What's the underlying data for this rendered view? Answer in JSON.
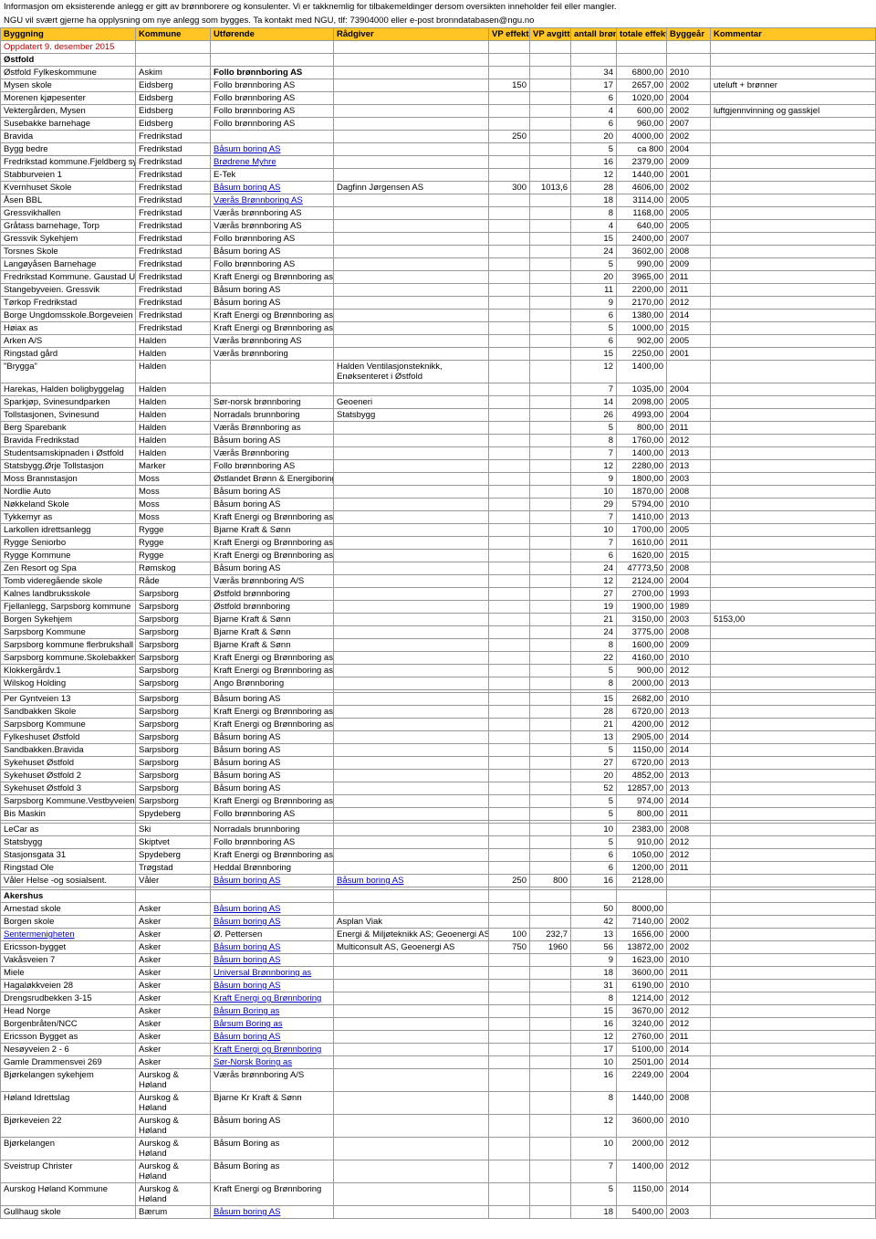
{
  "info_lines": [
    "Informasjon om eksisterende anlegg er gitt av brønnborere og konsulenter. Vi er takknemlig for tilbakemeldinger dersom oversikten inneholder feil eller mangler.",
    "NGU vil svært gjerne ha opplysning om nye anlegg som bygges. Ta kontakt med NGU, tlf: 73904000 eller e-post bronndatabasen@ngu.no"
  ],
  "updated": "Oppdatert 9. desember 2015",
  "headers": {
    "byggning": "Byggning",
    "kommune": "Kommune",
    "utforende": "Utførende",
    "radgiver": "Rådgiver",
    "vp_effekt": "VP effekt kW",
    "vp_avgitt": "VP avgitt mWh",
    "antall": "antall brønner",
    "totale": "totale effektive meter",
    "byggear": "Byggeår",
    "kommentar": "Kommentar"
  },
  "sections": [
    {
      "name": "Østfold",
      "rows": [
        {
          "b": "Østfold Fylkeskommune",
          "k": "Askim",
          "u": "Follo brønnboring AS",
          "ubold": true,
          "a": "34",
          "t": "6800,00",
          "y": "2010"
        },
        {
          "b": "Mysen skole",
          "k": "Eidsberg",
          "u": "Follo brønnboring AS",
          "v1": "150",
          "a": "17",
          "t": "2657,00",
          "y": "2002",
          "c": "uteluft + brønner"
        },
        {
          "b": "Morenen kjøpesenter",
          "k": "Eidsberg",
          "u": "Follo brønnboring AS",
          "a": "6",
          "t": "1020,00",
          "y": "2004"
        },
        {
          "b": "Vektergården, Mysen",
          "k": "Eidsberg",
          "u": "Follo brønnboring AS",
          "a": "4",
          "t": "600,00",
          "y": "2002",
          "c": "luftgjennvinning og gasskjel"
        },
        {
          "b": "Susebakke barnehage",
          "k": "Eidsberg",
          "u": "Follo brønnboring AS",
          "a": "6",
          "t": "960,00",
          "y": "2007"
        },
        {
          "b": "Bravida",
          "k": "Fredrikstad",
          "v1": "250",
          "a": "20",
          "t": "4000,00",
          "y": "2002"
        },
        {
          "b": "Bygg bedre",
          "k": "Fredrikstad",
          "u": "Båsum boring AS",
          "ulink": true,
          "a": "5",
          "t": "ca 800",
          "y": "2004"
        },
        {
          "b": "Fredrikstad kommune.Fjeldberg sykeh",
          "k": "Fredrikstad",
          "u": "Brødrene Myhre",
          "ulink": true,
          "a": "16",
          "t": "2379,00",
          "y": "2009"
        },
        {
          "b": "Stabburveien 1",
          "k": "Fredrikstad",
          "u": "E-Tek",
          "a": "12",
          "t": "1440,00",
          "y": "2001"
        },
        {
          "b": "Kvernhuset Skole",
          "k": "Fredrikstad",
          "u": "Båsum boring AS",
          "ulink": true,
          "r": "Dagfinn Jørgensen AS",
          "v1": "300",
          "v2": "1013,6",
          "a": "28",
          "t": "4606,00",
          "y": "2002"
        },
        {
          "b": "Åsen BBL",
          "k": "Fredrikstad",
          "u": "Værås Brønnboring AS",
          "ulink": true,
          "a": "18",
          "t": "3114,00",
          "y": "2005"
        },
        {
          "b": "Gressvikhallen",
          "k": "Fredrikstad",
          "u": "Værås brønnboring AS",
          "a": "8",
          "t": "1168,00",
          "y": "2005"
        },
        {
          "b": "Gråtass barnehage, Torp",
          "k": "Fredrikstad",
          "u": "Værås brønnboring AS",
          "a": "4",
          "t": "640,00",
          "y": "2005"
        },
        {
          "b": "Gressvik Sykehjem",
          "k": "Fredrikstad",
          "u": "Follo brønnboring AS",
          "a": "15",
          "t": "2400,00",
          "y": "2007"
        },
        {
          "b": "Torsnes Skole",
          "k": "Fredrikstad",
          "u": "Båsum boring AS",
          "a": "24",
          "t": "3602,00",
          "y": "2008"
        },
        {
          "b": "Langøyåsen Barnehage",
          "k": "Fredrikstad",
          "u": "Follo brønnboring AS",
          "a": "5",
          "t": "990,00",
          "y": "2009"
        },
        {
          "b": "Fredrikstad Kommune. Gaustad Ungd",
          "k": "Fredrikstad",
          "u": "Kraft Energi og Brønnboring as",
          "a": "20",
          "t": "3965,00",
          "y": "2011"
        },
        {
          "b": "Stangebyveien. Gressvik",
          "k": "Fredrikstad",
          "u": "Båsum boring AS",
          "a": "11",
          "t": "2200,00",
          "y": "2011"
        },
        {
          "b": "Tørkop Fredrikstad",
          "k": "Fredrikstad",
          "u": "Båsum boring AS",
          "a": "9",
          "t": "2170,00",
          "y": "2012"
        },
        {
          "b": "Borge Ungdomsskole.Borgeveien 74",
          "k": "Fredrikstad",
          "u": "Kraft Energi og Brønnboring as",
          "a": "6",
          "t": "1380,00",
          "y": "2014"
        },
        {
          "b": "Høiax as",
          "k": "Fredrikstad",
          "u": "Kraft Energi og Brønnboring as",
          "a": "5",
          "t": "1000,00",
          "y": "2015"
        },
        {
          "b": "Arken A/S",
          "k": "Halden",
          "u": "Værås brønnboring AS",
          "a": "6",
          "t": "902,00",
          "y": "2005"
        },
        {
          "b": "Ringstad gård",
          "k": "Halden",
          "u": "Værås brønnboring",
          "a": "15",
          "t": "2250,00",
          "y": "2001"
        },
        {
          "b": "\"Brygga\"",
          "k": "Halden",
          "r": "Halden Ventilasjonsteknikk, Enøksenteret i Østfold",
          "rwrap": true,
          "a": "12",
          "t": "1400,00"
        },
        {
          "b": "Harekas, Halden boligbyggelag",
          "k": "Halden",
          "a": "7",
          "t": "1035,00",
          "y": "2004"
        },
        {
          "b": "Sparkjøp, Svinesundparken",
          "k": "Halden",
          "u": "Sør-norsk brønnboring",
          "r": "Geoeneri",
          "a": "14",
          "t": "2098,00",
          "y": "2005"
        },
        {
          "b": "Tollstasjonen, Svinesund",
          "k": "Halden",
          "u": "Norradals brunnboring",
          "r": "Statsbygg",
          "a": "26",
          "t": "4993,00",
          "y": "2004"
        },
        {
          "b": "Berg Sparebank",
          "k": "Halden",
          "u": "Værås Brønnboring as",
          "a": "5",
          "t": "800,00",
          "y": "2011"
        },
        {
          "b": "Bravida Fredrikstad",
          "k": "Halden",
          "u": "Båsum boring AS",
          "a": "8",
          "t": "1760,00",
          "y": "2012"
        },
        {
          "b": "Studentsamskipnaden i Østfold",
          "k": "Halden",
          "u": "Værås Brønnboring",
          "a": "7",
          "t": "1400,00",
          "y": "2013"
        },
        {
          "b": "Statsbygg.Ørje Tollstasjon",
          "k": "Marker",
          "u": "Follo brønnboring AS",
          "a": "12",
          "t": "2280,00",
          "y": "2013"
        },
        {
          "b": "Moss Brannstasjon",
          "k": "Moss",
          "u": "Østlandet Brønn & Energiboring",
          "a": "9",
          "t": "1800,00",
          "y": "2003"
        },
        {
          "b": "Nordlie Auto",
          "k": "Moss",
          "u": "Båsum boring AS",
          "a": "10",
          "t": "1870,00",
          "y": "2008"
        },
        {
          "b": "Nøkkeland Skole",
          "k": "Moss",
          "u": "Båsum boring AS",
          "a": "29",
          "t": "5794,00",
          "y": "2010"
        },
        {
          "b": "Tykkemyr as",
          "k": "Moss",
          "u": "Kraft Energi og Brønnboring as",
          "a": "7",
          "t": "1410,00",
          "y": "2013"
        },
        {
          "b": "Larkollen idrettsanlegg",
          "k": "Rygge",
          "u": "Bjarne Kraft & Sønn",
          "a": "10",
          "t": "1700,00",
          "y": "2005"
        },
        {
          "b": "Rygge Seniorbo",
          "k": "Rygge",
          "u": "Kraft Energi og Brønnboring as",
          "a": "7",
          "t": "1610,00",
          "y": "2011"
        },
        {
          "b": "Rygge Kommune",
          "k": "Rygge",
          "u": "Kraft Energi og Brønnboring as",
          "a": "6",
          "t": "1620,00",
          "y": "2015"
        },
        {
          "b": "Zen Resort og Spa",
          "k": "Rømskog",
          "u": "Båsum boring AS",
          "a": "24",
          "t": "47773,50",
          "y": "2008"
        },
        {
          "b": " Tomb videregående skole",
          "k": "Råde",
          "u": "Værås brønnboring A/S",
          "a": "12",
          "t": "2124,00",
          "y": "2004"
        },
        {
          "b": "Kalnes landbruksskole",
          "k": "Sarpsborg",
          "u": "Østfold brønnboring",
          "a": "27",
          "t": "2700,00",
          "y": "1993"
        },
        {
          "b": "Fjellanlegg, Sarpsborg kommune",
          "k": "Sarpsborg",
          "u": "Østfold brønnboring",
          "a": "19",
          "t": "1900,00",
          "y": "1989"
        },
        {
          "b": "Borgen Sykehjem",
          "k": "Sarpsborg",
          "u": "Bjarne Kraft & Sønn",
          "a": "21",
          "t": "3150,00",
          "y": "2003",
          "c": "5153,00"
        },
        {
          "b": "Sarpsborg Kommune",
          "k": "Sarpsborg",
          "u": "Bjarne Kraft & Sønn",
          "a": "24",
          "t": "3775,00",
          "y": "2008"
        },
        {
          "b": "Sarpsborg kommune flerbrukshall",
          "k": "Sarpsborg",
          "u": "Bjarne Kraft & Sønn",
          "a": "8",
          "t": "1600,00",
          "y": "2009"
        },
        {
          "b": "Sarpsborg kommune.Skolebakken 5",
          "k": "Sarpsborg",
          "u": "Kraft Energi og Brønnboring as",
          "a": "22",
          "t": "4160,00",
          "y": "2010"
        },
        {
          "b": "Klokkergårdv.1",
          "k": "Sarpsborg",
          "u": "Kraft Energi og Brønnboring as",
          "a": "5",
          "t": "900,00",
          "y": "2012"
        },
        {
          "b": "Wilskog Holding",
          "k": "Sarpsborg",
          "u": "Ango Brønnboring",
          "a": "8",
          "t": "2000,00",
          "y": "2013"
        },
        {
          "blank": true
        },
        {
          "b": "Per Gyntveien 13",
          "k": "Sarpsborg",
          "u": "Båsum boring AS",
          "a": "15",
          "t": "2682,00",
          "y": "2010"
        },
        {
          "b": "Sandbakken Skole",
          "k": "Sarpsborg",
          "u": "Kraft Energi og Brønnboring as",
          "a": "28",
          "t": "6720,00",
          "y": "2013"
        },
        {
          "b": "Sarpsborg Kommune",
          "k": "Sarpsborg",
          "u": "Kraft Energi og Brønnboring as",
          "a": "21",
          "t": "4200,00",
          "y": "2012"
        },
        {
          "b": "Fylkeshuset Østfold",
          "k": "Sarpsborg",
          "u": "Båsum boring AS",
          "a": "13",
          "t": "2905,00",
          "y": "2014"
        },
        {
          "b": "Sandbakken.Bravida",
          "k": "Sarpsborg",
          "u": "Båsum boring AS",
          "a": "5",
          "t": "1150,00",
          "y": "2014"
        },
        {
          "b": "Sykehuset Østfold",
          "k": "Sarpsborg",
          "u": "Båsum boring AS",
          "a": "27",
          "t": "6720,00",
          "y": "2013"
        },
        {
          "b": "Sykehuset Østfold 2",
          "k": "Sarpsborg",
          "u": "Båsum boring AS",
          "a": "20",
          "t": "4852,00",
          "y": "2013"
        },
        {
          "b": "Sykehuset Østfold 3",
          "k": "Sarpsborg",
          "u": "Båsum boring AS",
          "a": "52",
          "t": "12857,00",
          "y": "2013"
        },
        {
          "b": "Sarpsborg Kommune.Vestbyveien 3",
          "k": "Sarpsborg",
          "u": "Kraft Energi og Brønnboring as",
          "a": "5",
          "t": "974,00",
          "y": "2014"
        },
        {
          "b": "Bis Maskin",
          "k": "Spydeberg",
          "u": "Follo brønnboring AS",
          "a": "5",
          "t": "800,00",
          "y": "2011"
        },
        {
          "blank": true
        },
        {
          "b": "LeCar as",
          "k": "Ski",
          "u": "Norradals brunnboring",
          "a": "10",
          "t": "2383,00",
          "y": "2008"
        },
        {
          "b": "Statsbygg",
          "k": "Skiptvet",
          "u": "Follo brønnboring AS",
          "a": "5",
          "t": "910,00",
          "y": "2012"
        },
        {
          "b": "Stasjonsgata 31",
          "k": "Spydeberg",
          "u": "Kraft Energi og Brønnboring as",
          "a": "6",
          "t": "1050,00",
          "y": "2012"
        },
        {
          "b": "Ringstad Ole",
          "k": "Trøgstad",
          "u": "Heddal Brønnboring",
          "a": "6",
          "t": "1200,00",
          "y": "2011"
        },
        {
          "b": "Våler Helse -og sosialsent.",
          "k": "Våler",
          "u": "Båsum boring AS",
          "ulink": true,
          "r": "Båsum boring AS",
          "rlink": true,
          "v1": "250",
          "v2": "800",
          "a": "16",
          "t": "2128,00"
        },
        {
          "blank": true
        }
      ]
    },
    {
      "name": "Akershus",
      "rows": [
        {
          "b": "Arnestad skole",
          "k": "Asker",
          "u": "Båsum boring AS",
          "ulink": true,
          "a": "50",
          "t": "8000,00"
        },
        {
          "b": "Borgen skole",
          "k": "Asker",
          "u": "Båsum boring AS",
          "ulink": true,
          "r": "Asplan Viak",
          "a": "42",
          "t": "7140,00",
          "y": "2002"
        },
        {
          "b": "Sentermenigheten",
          "blink": true,
          "k": "Asker",
          "u": "Ø. Pettersen",
          "r": "Energi & Miljøteknikk AS; Geoenergi AS",
          "v1": "100",
          "v2": "232,7",
          "a": "13",
          "t": "1656,00",
          "y": "2000"
        },
        {
          "b": "Ericsson-bygget",
          "k": "Asker",
          "u": "Båsum boring AS",
          "ulink": true,
          "r": "Multiconsult AS, Geoenergi AS",
          "v1": "750",
          "v2": "1960",
          "a": "56",
          "t": "13872,00",
          "y": "2002"
        },
        {
          "b": "Vakåsveien 7",
          "k": "Asker",
          "u": "Båsum boring AS",
          "ulink": true,
          "a": "9",
          "t": "1623,00",
          "y": "2010"
        },
        {
          "b": "Miele",
          "k": "Asker",
          "u": "Universal Brønnboring as",
          "ulink": true,
          "a": "18",
          "t": "3600,00",
          "y": "2011"
        },
        {
          "b": "Hagaløkkveien 28",
          "k": "Asker",
          "u": "Båsum boring AS",
          "ulink": true,
          "a": "31",
          "t": "6190,00",
          "y": "2010"
        },
        {
          "b": "Drengsrudbekken 3-15",
          "k": "Asker",
          "u": "Kraft Energi og Brønnboring",
          "ulink": true,
          "a": "8",
          "t": "1214,00",
          "y": "2012"
        },
        {
          "b": "Head Norge",
          "k": "Asker",
          "u": "Båsum Boring as",
          "ulink": true,
          "a": "15",
          "t": "3670,00",
          "y": "2012"
        },
        {
          "b": "Borgenbråten/NCC",
          "k": "Asker",
          "u": "Bårsum Boring as",
          "ulink": true,
          "a": "16",
          "t": "3240,00",
          "y": "2012"
        },
        {
          "b": "Ericsson Bygget as",
          "k": "Asker",
          "u": "Båsum boring AS",
          "ulink": true,
          "a": "12",
          "t": "2760,00",
          "y": "2011"
        },
        {
          "b": "Nesøyveien 2 - 6",
          "k": "Asker",
          "u": "Kraft Energi og Brønnboring",
          "ulink": true,
          "a": "17",
          "t": "5100,00",
          "y": "2014"
        },
        {
          "b": "Gamle Drammensvei 269",
          "k": "Asker",
          "u": "Sør-Norsk Boring as",
          "ulink": true,
          "a": "10",
          "t": "2501,00",
          "y": "2014"
        },
        {
          "b": "Bjørkelangen sykehjem",
          "k": "Aurskog & Høland",
          "kwrap": true,
          "u": "Værås brønnboring A/S",
          "a": "16",
          "t": "2249,00",
          "y": "2004"
        },
        {
          "b": "Høland Idrettslag",
          "k": "Aurskog & Høland",
          "kwrap": true,
          "u": "Bjarne Kr Kraft & Sønn",
          "a": "8",
          "t": "1440,00",
          "y": "2008"
        },
        {
          "b": "Bjørkeveien 22",
          "k": "Aurskog & Høland",
          "kwrap": true,
          "u": "Båsum boring AS",
          "a": "12",
          "t": "3600,00",
          "y": "2010"
        },
        {
          "b": "Bjørkelangen",
          "k": "Aurskog & Høland",
          "kwrap": true,
          "u": "Båsum Boring as",
          "a": "10",
          "t": "2000,00",
          "y": "2012"
        },
        {
          "b": "Sveistrup Christer",
          "k": "Aurskog & Høland",
          "kwrap": true,
          "u": "Båsum Boring as",
          "a": "7",
          "t": "1400,00",
          "y": "2012"
        },
        {
          "b": "Aurskog Høland Kommune",
          "k": "Aurskog & Høland",
          "kwrap": true,
          "u": "Kraft Energi og Brønnboring",
          "a": "5",
          "t": "1150,00",
          "y": "2014"
        },
        {
          "b": "Gullhaug skole",
          "k": "Bærum",
          "u": "Båsum boring AS",
          "ulink": true,
          "a": "18",
          "t": "5400,00",
          "y": "2003"
        }
      ]
    }
  ]
}
